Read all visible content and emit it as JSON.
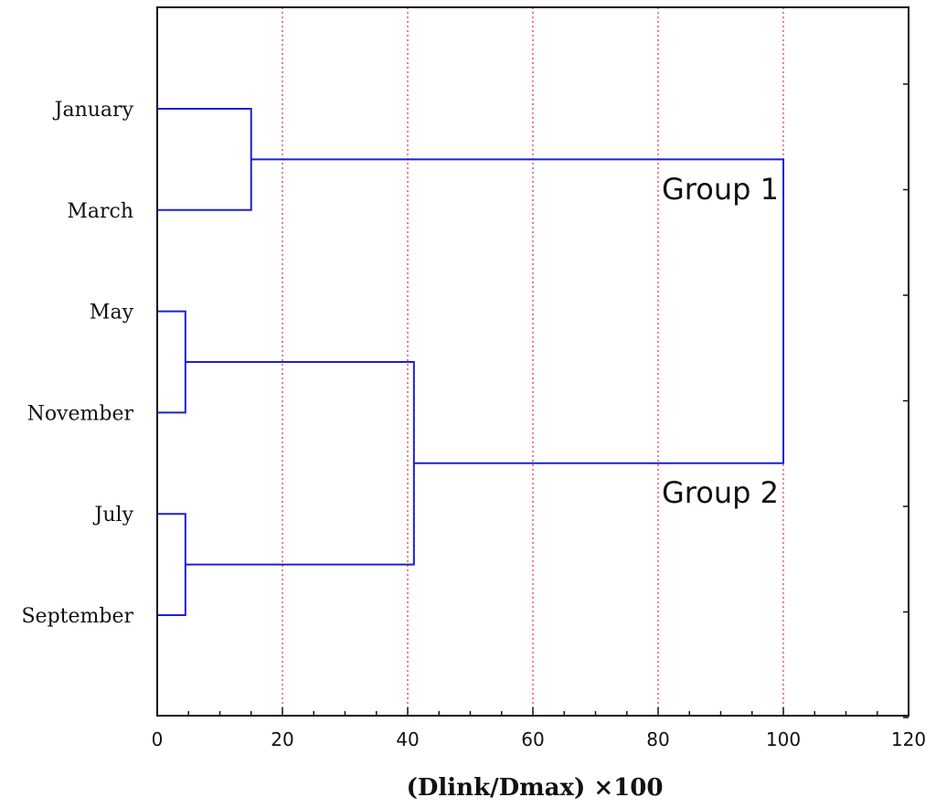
{
  "chart_data": {
    "type": "dendrogram",
    "orientation": "horizontal",
    "xlabel": "(Dlink/Dmax) ×100",
    "xlim": [
      0,
      120
    ],
    "x_ticks": [
      "0",
      "20",
      "40",
      "60",
      "80",
      "100",
      "120"
    ],
    "grid": "vertical dotted lines at 20, 40, 60, 80, 100",
    "colors": {
      "links": "#1f1fd0",
      "grid": "#e03030",
      "axis": "#111111"
    },
    "leaves": [
      "January",
      "March",
      "May",
      "November",
      "July",
      "September"
    ],
    "merges": [
      {
        "members": [
          "January",
          "March"
        ],
        "distance": 15
      },
      {
        "members": [
          "May",
          "November"
        ],
        "distance": 4.5
      },
      {
        "members": [
          "July",
          "September"
        ],
        "distance": 4.5
      },
      {
        "members": [
          "May + November",
          "July + September"
        ],
        "distance": 41
      },
      {
        "members": [
          "Group 1",
          "Group 2"
        ],
        "distance": 100
      }
    ],
    "annotations": [
      "Group 1",
      "Group 2"
    ]
  }
}
